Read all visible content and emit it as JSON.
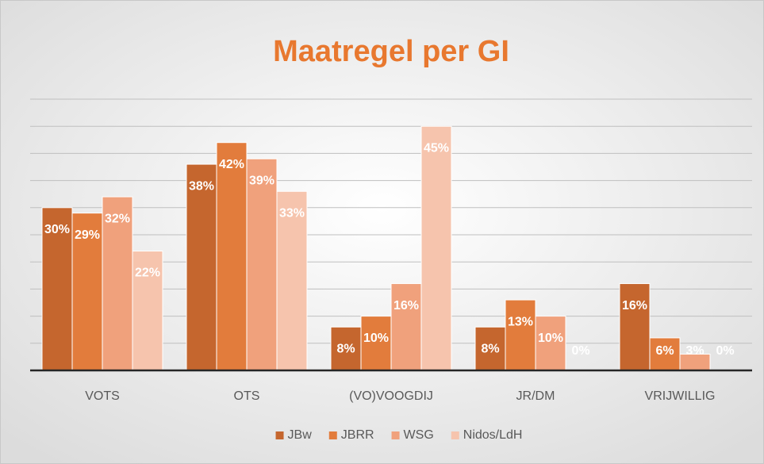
{
  "chart_data": {
    "type": "bar",
    "title": "Maatregel per GI",
    "categories": [
      "VOTS",
      "OTS",
      "(VO)VOOGDIJ",
      "JR/DM",
      "VRIJWILLIG"
    ],
    "series": [
      {
        "name": "JBw",
        "color": "#c5662e",
        "values": [
          30,
          38,
          8,
          8,
          16
        ],
        "value_labels": [
          "30%",
          "38%",
          "8%",
          "8%",
          "16%"
        ]
      },
      {
        "name": "JBRR",
        "color": "#e27c3c",
        "values": [
          29,
          42,
          10,
          13,
          6
        ],
        "value_labels": [
          "29%",
          "42%",
          "10%",
          "13%",
          "6%"
        ]
      },
      {
        "name": "WSG",
        "color": "#f0a17c",
        "values": [
          32,
          39,
          16,
          10,
          3
        ],
        "value_labels": [
          "32%",
          "39%",
          "16%",
          "10%",
          "3%"
        ]
      },
      {
        "name": "Nidos/LdH",
        "color": "#f6c4ad",
        "values": [
          22,
          33,
          45,
          0,
          0
        ],
        "value_labels": [
          "22%",
          "33%",
          "45%",
          "0%",
          "0%"
        ]
      }
    ],
    "ylim": [
      0,
      50
    ],
    "yticks": [
      0,
      5,
      10,
      15,
      20,
      25,
      30,
      35,
      40,
      45,
      50
    ],
    "grid": true,
    "legend": "bottom"
  }
}
